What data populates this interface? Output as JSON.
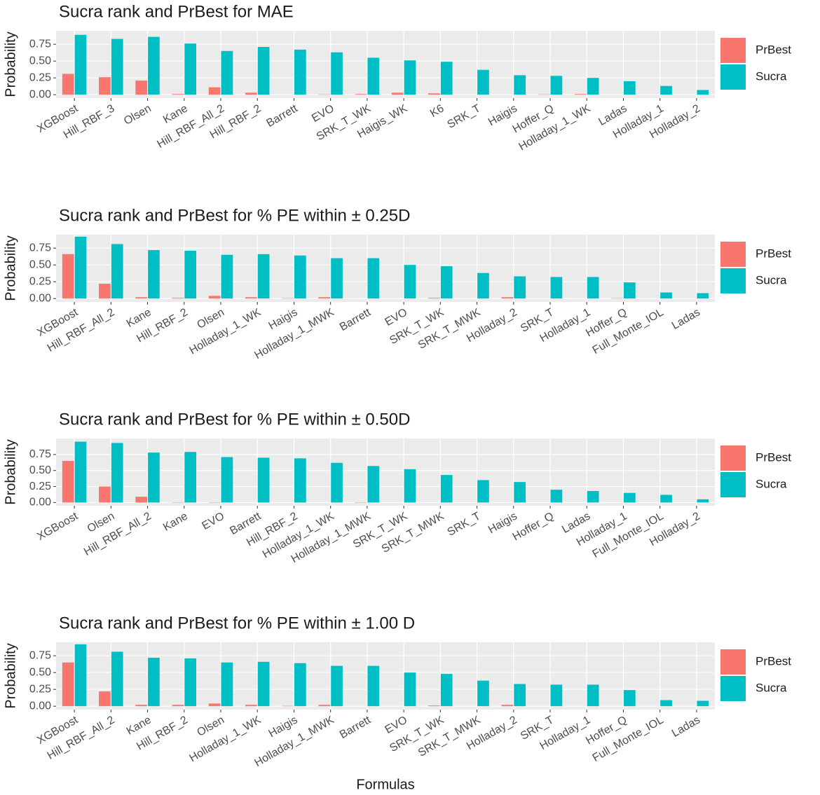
{
  "chart_data": [
    {
      "type": "bar",
      "title": "Sucra rank and PrBest for MAE",
      "ylabel": "Probability",
      "categories": [
        "XGBoost",
        "Hill_RBF_3",
        "Olsen",
        "Kane",
        "Hill_RBF_All_2",
        "Hill_RBF_2",
        "Barrett",
        "EVO",
        "SRK_T_WK",
        "Haigis_WK",
        "K6",
        "SRK_T",
        "Haigis",
        "Hoffer_Q",
        "Holladay_1_WK",
        "Ladas",
        "Holladay_1",
        "Holladay_2"
      ],
      "series": [
        {
          "name": "PrBest",
          "color": "#F8766D",
          "values": [
            0.31,
            0.26,
            0.21,
            0.01,
            0.11,
            0.03,
            0,
            0.005,
            0.01,
            0.03,
            0.02,
            0,
            0,
            0.005,
            0.01,
            0,
            0,
            0
          ]
        },
        {
          "name": "Sucra",
          "color": "#00BFC4",
          "values": [
            0.89,
            0.83,
            0.86,
            0.76,
            0.65,
            0.71,
            0.67,
            0.63,
            0.55,
            0.51,
            0.49,
            0.37,
            0.29,
            0.28,
            0.25,
            0.2,
            0.13,
            0.07
          ]
        }
      ],
      "ylim": [
        -0.05,
        0.95
      ],
      "yticks": [
        {
          "value": 0,
          "label": "0.00"
        },
        {
          "value": 0.25,
          "label": "0.25"
        },
        {
          "value": 0.5,
          "label": "0.50"
        },
        {
          "value": 0.75,
          "label": "0.75"
        }
      ],
      "grid": true
    },
    {
      "type": "bar",
      "title": "Sucra rank and PrBest for % PE within ± 0.25D",
      "ylabel": "Probability",
      "categories": [
        "XGBoost",
        "Hill_RBF_All_2",
        "Kane",
        "Hill_RBF_2",
        "Olsen",
        "Holladay_1_WK",
        "Haigis",
        "Holladay_1_MWK",
        "Barrett",
        "EVO",
        "SRK_T_WK",
        "SRK_T_MWK",
        "Holladay_2",
        "SRK_T",
        "Holladay_1",
        "Hoffer_Q",
        "Full_Monte_IOL",
        "Ladas"
      ],
      "series": [
        {
          "name": "PrBest",
          "color": "#F8766D",
          "values": [
            0.66,
            0.22,
            0.02,
            0.01,
            0.04,
            0.02,
            0.005,
            0.02,
            0,
            0,
            0.01,
            0,
            0.02,
            0,
            0,
            0.005,
            0,
            0
          ]
        },
        {
          "name": "Sucra",
          "color": "#00BFC4",
          "values": [
            0.92,
            0.81,
            0.72,
            0.71,
            0.65,
            0.66,
            0.64,
            0.6,
            0.6,
            0.5,
            0.48,
            0.38,
            0.33,
            0.32,
            0.32,
            0.24,
            0.09,
            0.08
          ]
        }
      ],
      "ylim": [
        -0.05,
        0.95
      ],
      "yticks": [
        {
          "value": 0,
          "label": "0.00"
        },
        {
          "value": 0.25,
          "label": "0.25"
        },
        {
          "value": 0.5,
          "label": "0.50"
        },
        {
          "value": 0.75,
          "label": "0.75"
        }
      ],
      "grid": true
    },
    {
      "type": "bar",
      "title": "Sucra rank and PrBest for % PE within ± 0.50D",
      "ylabel": "Probability",
      "categories": [
        "XGBoost",
        "Olsen",
        "Hill_RBF_All_2",
        "Kane",
        "EVO",
        "Barrett",
        "Hill_RBF_2",
        "Holladay_1_WK",
        "Holladay_1_MWK",
        "SRK_T_WK",
        "SRK_T_MWK",
        "SRK_T",
        "Haigis",
        "Hoffer_Q",
        "Ladas",
        "Holladay_1",
        "Full_Monte_IOL",
        "Holladay_2"
      ],
      "series": [
        {
          "name": "PrBest",
          "color": "#F8766D",
          "values": [
            0.65,
            0.25,
            0.09,
            0.005,
            0.005,
            0,
            0,
            0,
            0.005,
            0,
            0,
            0,
            0,
            0,
            0,
            0,
            0,
            0
          ]
        },
        {
          "name": "Sucra",
          "color": "#00BFC4",
          "values": [
            0.95,
            0.93,
            0.78,
            0.79,
            0.71,
            0.7,
            0.69,
            0.62,
            0.57,
            0.52,
            0.43,
            0.35,
            0.32,
            0.2,
            0.18,
            0.15,
            0.12,
            0.05
          ]
        }
      ],
      "ylim": [
        -0.05,
        1.0
      ],
      "yticks": [
        {
          "value": 0,
          "label": "0.00"
        },
        {
          "value": 0.25,
          "label": "0.25"
        },
        {
          "value": 0.5,
          "label": "0.50"
        },
        {
          "value": 0.75,
          "label": "0.75"
        }
      ],
      "grid": true
    },
    {
      "type": "bar",
      "title": "Sucra rank and PrBest for % PE within ± 1.00 D",
      "ylabel": "Probability",
      "categories": [
        "XGBoost",
        "Hill_RBF_All_2",
        "Kane",
        "Hill_RBF_2",
        "Olsen",
        "Holladay_1_WK",
        "Haigis",
        "Holladay_1_MWK",
        "Barrett",
        "EVO",
        "SRK_T_WK",
        "SRK_T_MWK",
        "Holladay_2",
        "SRK_T",
        "Holladay_1",
        "Hoffer_Q",
        "Full_Monte_IOL",
        "Ladas"
      ],
      "series": [
        {
          "name": "PrBest",
          "color": "#F8766D",
          "values": [
            0.65,
            0.22,
            0.02,
            0.02,
            0.04,
            0.02,
            0.005,
            0.02,
            0,
            0,
            0.01,
            0,
            0.02,
            0,
            0,
            0,
            0,
            0
          ]
        },
        {
          "name": "Sucra",
          "color": "#00BFC4",
          "values": [
            0.92,
            0.81,
            0.72,
            0.71,
            0.65,
            0.66,
            0.64,
            0.6,
            0.6,
            0.5,
            0.48,
            0.38,
            0.33,
            0.32,
            0.32,
            0.24,
            0.09,
            0.08
          ]
        }
      ],
      "ylim": [
        -0.05,
        0.95
      ],
      "yticks": [
        {
          "value": 0,
          "label": "0.00"
        },
        {
          "value": 0.25,
          "label": "0.25"
        },
        {
          "value": 0.5,
          "label": "0.50"
        },
        {
          "value": 0.75,
          "label": "0.75"
        }
      ],
      "grid": true
    }
  ],
  "x_label": "Formulas"
}
